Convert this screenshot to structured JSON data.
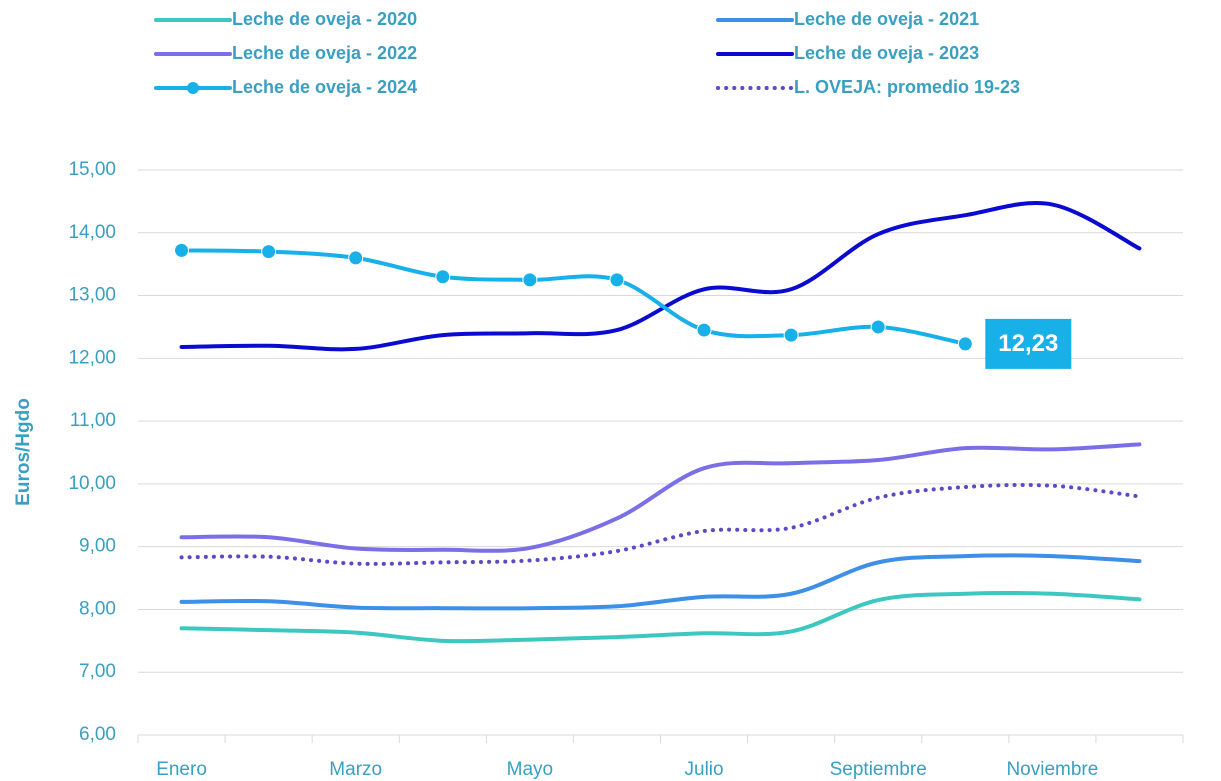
{
  "chart_data": {
    "type": "line",
    "y_label": "Euros/Hgdo",
    "categories": [
      "Enero",
      null,
      "Marzo",
      null,
      "Mayo",
      null,
      "Julio",
      null,
      "Septiembre",
      null,
      "Noviembre",
      null
    ],
    "ylim": [
      6,
      15
    ],
    "yticks": [
      {
        "value": 6,
        "label": "6,00"
      },
      {
        "value": 7,
        "label": "7,00"
      },
      {
        "value": 8,
        "label": "8,00"
      },
      {
        "value": 9,
        "label": "9,00"
      },
      {
        "value": 10,
        "label": "10,00"
      },
      {
        "value": 11,
        "label": "11,00"
      },
      {
        "value": 12,
        "label": "12,00"
      },
      {
        "value": 13,
        "label": "13,00"
      },
      {
        "value": 14,
        "label": "14,00"
      },
      {
        "value": 15,
        "label": "15,00"
      }
    ],
    "grid": true,
    "legend": "top",
    "series": [
      {
        "name": "Leche de oveja - 2020",
        "color": "#3cc8c0",
        "values": [
          7.7,
          7.67,
          7.63,
          7.5,
          7.52,
          7.56,
          7.62,
          7.65,
          8.15,
          8.25,
          8.25,
          8.16
        ]
      },
      {
        "name": "Leche de oveja - 2021",
        "color": "#3d8fe8",
        "values": [
          8.12,
          8.13,
          8.03,
          8.02,
          8.02,
          8.05,
          8.2,
          8.25,
          8.75,
          8.85,
          8.85,
          8.77
        ]
      },
      {
        "name": "Leche de oveja - 2022",
        "color": "#7b6fe8",
        "values": [
          9.15,
          9.15,
          8.97,
          8.95,
          8.98,
          9.45,
          10.25,
          10.33,
          10.38,
          10.57,
          10.55,
          10.63
        ]
      },
      {
        "name": "Leche de oveja - 2023",
        "color": "#0a0ad0",
        "values": [
          12.18,
          12.2,
          12.15,
          12.37,
          12.4,
          12.45,
          13.1,
          13.1,
          13.98,
          14.28,
          14.45,
          13.75
        ]
      },
      {
        "name": "Leche de oveja - 2024",
        "color": "#17b0e8",
        "marker": "circle",
        "values": [
          13.72,
          13.7,
          13.6,
          13.3,
          13.25,
          13.25,
          12.45,
          12.37,
          12.5,
          12.23,
          null,
          null
        ],
        "value_labels": [
          null,
          null,
          null,
          null,
          null,
          null,
          null,
          null,
          null,
          "12,23",
          null,
          null
        ]
      },
      {
        "name": "L. OVEJA: promedio 19-23",
        "color": "#5a4ac8",
        "line_style": "dotted",
        "values": [
          8.83,
          8.84,
          8.73,
          8.75,
          8.78,
          8.93,
          9.25,
          9.3,
          9.78,
          9.95,
          9.97,
          9.8
        ]
      }
    ]
  }
}
